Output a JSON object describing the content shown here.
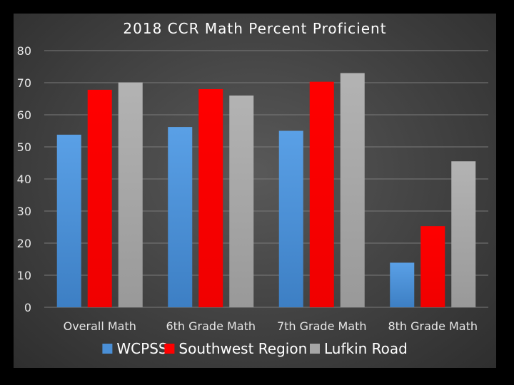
{
  "chart_data": {
    "type": "bar",
    "title": "2018 CCR Math Percent Proficient",
    "categories": [
      "Overall Math",
      "6th Grade Math",
      "7th Grade Math",
      "8th Grade Math"
    ],
    "series": [
      {
        "name": "WCPSS",
        "values": [
          53.8,
          56.2,
          55.0,
          13.9
        ],
        "color": "#4a8fd6"
      },
      {
        "name": "Southwest Region",
        "values": [
          67.8,
          68.0,
          70.3,
          25.3
        ],
        "color": "#ff0000"
      },
      {
        "name": "Lufkin Road",
        "values": [
          70.1,
          66.0,
          73.0,
          45.5
        ],
        "color": "#a6a6a6"
      }
    ],
    "ylim": [
      0,
      80
    ],
    "yticks": [
      0,
      10,
      20,
      30,
      40,
      50,
      60,
      70,
      80
    ],
    "grid": true,
    "legend": "bottom",
    "xlabel": "",
    "ylabel": ""
  }
}
